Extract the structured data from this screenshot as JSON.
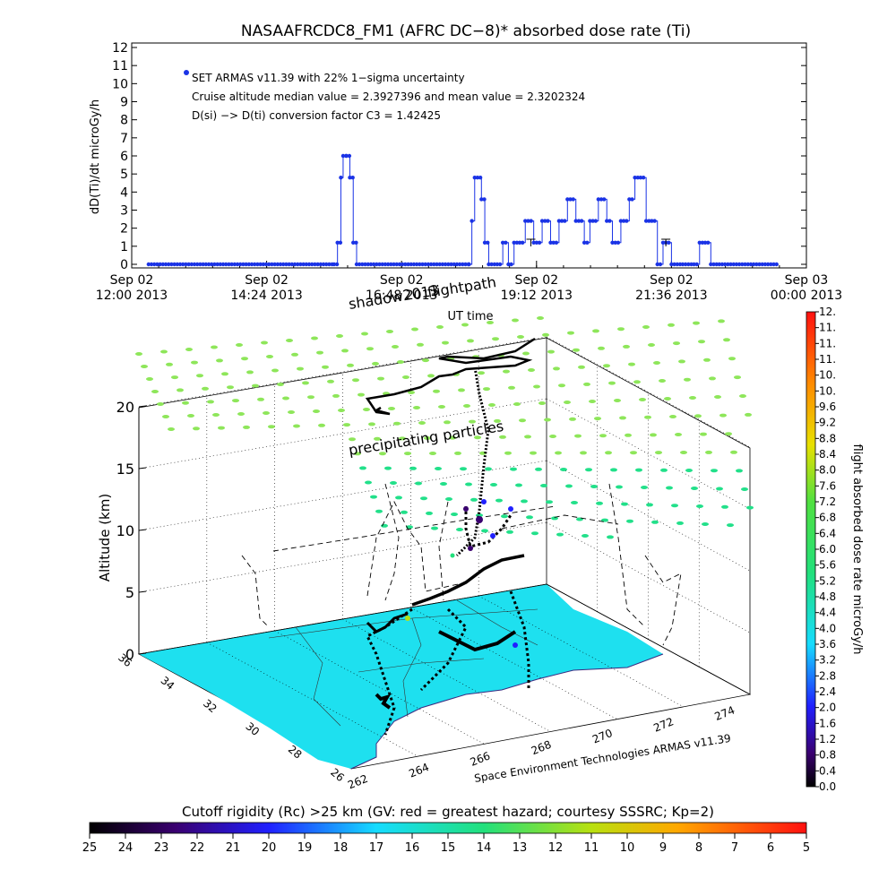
{
  "top_chart": {
    "title": "NASAAFRCDC8_FM1 (AFRC DC−8)* absorbed dose rate (Ti)",
    "ylabel": "dD(Ti)/dt microGy/h",
    "xlabel": "UT time",
    "legend_line1": "SET ARMAS v11.39 with 22% 1−sigma uncertainty",
    "legend_line2": "Cruise altitude median value = 2.3927396 and mean value = 2.3202324",
    "legend_line3": "D(si) −> D(ti) conversion factor C3 = 1.42425",
    "x_tick_top": [
      "Sep 02",
      "Sep 02",
      "Sep 02",
      "Sep 02",
      "Sep 02",
      "Sep 03"
    ],
    "x_tick_bottom": [
      "12:00 2013",
      "14:24 2013",
      "16:48 2013",
      "19:12 2013",
      "21:36 2013",
      "00:00 2013"
    ],
    "y_ticks": [
      "0",
      "1",
      "2",
      "3",
      "4",
      "5",
      "6",
      "7",
      "8",
      "9",
      "10",
      "11",
      "12"
    ],
    "marker_color": "#1a33e6"
  },
  "chart_data": [
    {
      "type": "line",
      "title": "NASAAFRCDC8_FM1 (AFRC DC−8)* absorbed dose rate (Ti)",
      "xlabel": "UT time",
      "ylabel": "dD(Ti)/dt microGy/h",
      "x_unit": "hours UT (Sep 02 2013)",
      "xlim": [
        12,
        24
      ],
      "ylim": [
        0,
        12
      ],
      "grid": false,
      "x": [
        12.3,
        15.6,
        15.66,
        15.72,
        15.76,
        15.82,
        15.88,
        15.94,
        16.0,
        16.05,
        18.0,
        18.05,
        18.1,
        18.15,
        18.22,
        18.28,
        18.35,
        18.4,
        18.5,
        18.6,
        18.7,
        18.8,
        18.9,
        19.0,
        19.15,
        19.3,
        19.45,
        19.6,
        19.75,
        19.9,
        20.05,
        20.15,
        20.3,
        20.45,
        20.55,
        20.7,
        20.85,
        20.95,
        21.05,
        21.15,
        21.25,
        21.35,
        21.45,
        21.6,
        21.8,
        22.0,
        22.1,
        22.2,
        22.3,
        22.45,
        23.5
      ],
      "values": [
        0,
        0,
        1.2,
        4.8,
        6,
        6,
        4.8,
        1.2,
        0,
        0,
        0,
        2.4,
        4.8,
        4.8,
        3.6,
        1.2,
        0,
        0,
        0,
        1.2,
        0,
        1.2,
        1.2,
        2.4,
        1.2,
        2.4,
        1.2,
        2.4,
        3.6,
        2.4,
        1.2,
        2.4,
        3.6,
        2.4,
        1.2,
        2.4,
        3.6,
        4.8,
        4.8,
        2.4,
        2.4,
        0,
        1.2,
        0,
        0,
        0,
        1.2,
        1.2,
        0,
        0,
        0
      ],
      "error_bars_at": [
        19.1,
        21.5
      ]
    },
    {
      "type": "scatter",
      "title": "",
      "zlabel": "Altitude (km)",
      "credit": "Space Environment Technologies ARMAS v11.39",
      "annotations": [
        "shadow2013",
        "flightpath",
        "precipitating particles"
      ],
      "x_ticks_longitude": [
        "262",
        "264",
        "266",
        "268",
        "270",
        "272",
        "274"
      ],
      "y_ticks_latitude": [
        "36",
        "34",
        "32",
        "30",
        "28",
        "26"
      ],
      "z_ticks": [
        "0",
        "5",
        "10",
        "15",
        "20"
      ],
      "colorbar_label": "flight absorbed dose rate microGy/h",
      "colorbar_ticks": [
        "0.0",
        "0.4",
        "0.8",
        "1.2",
        "1.6",
        "2.0",
        "2.4",
        "2.8",
        "3.2",
        "3.6",
        "4.0",
        "4.4",
        "4.8",
        "5.2",
        "5.6",
        "6.0",
        "6.4",
        "6.8",
        "7.2",
        "7.6",
        "8.0",
        "8.4",
        "8.8",
        "9.2",
        "9.6",
        "10.",
        "10.",
        "11.",
        "11.",
        "11.",
        "12."
      ],
      "rigidity_label": "Cutoff rigidity (Rc) >25 km (GV: red = greatest hazard; courtesy SSSRC; Kp=2)",
      "rigidity_ticks": [
        "25",
        "24",
        "23",
        "22",
        "21",
        "20",
        "19",
        "18",
        "17",
        "16",
        "15",
        "14",
        "13",
        "12",
        "11",
        "10",
        "9",
        "8",
        "7",
        "6",
        "5"
      ]
    }
  ],
  "colors": {
    "land": "#1ee0ef",
    "ocean": "#ffffff",
    "flight": "#000000",
    "particles": "#8ee65a",
    "particles_low": "#22e08a"
  }
}
